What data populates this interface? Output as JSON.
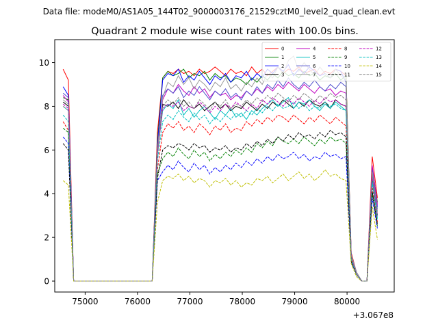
{
  "figure": {
    "suptitle": "Data file: modeM0/AS1A05_144T02_9000003176_21529cztM0_level2_quad_clean.evt",
    "offset_label": "+3.067e8"
  },
  "chart_data": {
    "type": "line",
    "title": "Quadrant 2 module wise count rates with 100.0s bins.",
    "xlabel": "",
    "ylabel": "",
    "x_offset": 306700000,
    "xlim": [
      74420,
      80900
    ],
    "ylim": [
      -0.5,
      11.05
    ],
    "xticks": [
      75000,
      76000,
      77000,
      78000,
      79000,
      80000
    ],
    "yticks": [
      0,
      2,
      4,
      6,
      8,
      10
    ],
    "x": [
      74580,
      74680,
      74780,
      74880,
      74980,
      75080,
      75180,
      75280,
      75380,
      75480,
      75580,
      75680,
      75780,
      75880,
      75980,
      76080,
      76180,
      76280,
      76380,
      76480,
      76580,
      76680,
      76780,
      76880,
      76980,
      77080,
      77180,
      77280,
      77380,
      77480,
      77580,
      77680,
      77780,
      77880,
      77980,
      78080,
      78180,
      78280,
      78380,
      78480,
      78580,
      78680,
      78780,
      78880,
      78980,
      79080,
      79180,
      79280,
      79380,
      79480,
      79580,
      79680,
      79780,
      79880,
      79980,
      80080,
      80180,
      80280,
      80380,
      80480,
      80580
    ],
    "legend": {
      "location": "upper right",
      "ncol": 4
    },
    "grid": false,
    "series": [
      {
        "name": "0",
        "color": "#ff0000",
        "style": "solid",
        "values": [
          9.7,
          9.2,
          0,
          0,
          0,
          0,
          0,
          0,
          0,
          0,
          0,
          0,
          0,
          0,
          0,
          0,
          0,
          0,
          6.8,
          9.3,
          9.6,
          9.5,
          9.7,
          9.5,
          9.6,
          9.4,
          9.7,
          9.5,
          9.6,
          9.8,
          9.6,
          9.4,
          9.7,
          9.5,
          9.6,
          9.4,
          9.8,
          9.5,
          9.7,
          9.4,
          9.6,
          9.8,
          9.5,
          9.7,
          9.6,
          9.8,
          9.5,
          9.6,
          9.7,
          9.4,
          9.6,
          9.5,
          9.7,
          9.6,
          9.4,
          1.3,
          0.4,
          0,
          0,
          5.7,
          3.8
        ]
      },
      {
        "name": "1",
        "color": "#008000",
        "style": "solid",
        "values": [
          8.4,
          8.3,
          0,
          0,
          0,
          0,
          0,
          0,
          0,
          0,
          0,
          0,
          0,
          0,
          0,
          0,
          0,
          0,
          6.4,
          9.3,
          9.6,
          9.4,
          9.5,
          9.7,
          9.3,
          9.5,
          9.4,
          9.6,
          9.2,
          9.5,
          9.3,
          9.4,
          9.1,
          9.3,
          9.2,
          9.0,
          9.3,
          9.1,
          9.4,
          9.2,
          9.5,
          9.3,
          9.6,
          9.4,
          9.5,
          9.3,
          9.6,
          9.4,
          9.5,
          9.2,
          9.4,
          9.3,
          9.5,
          9.2,
          9.4,
          1.2,
          0.4,
          0,
          0,
          5.2,
          3.6
        ]
      },
      {
        "name": "2",
        "color": "#0000ff",
        "style": "solid",
        "values": [
          8.9,
          8.5,
          0,
          0,
          0,
          0,
          0,
          0,
          0,
          0,
          0,
          0,
          0,
          0,
          0,
          0,
          0,
          0,
          6.2,
          9.2,
          9.5,
          9.4,
          9.7,
          9.1,
          9.4,
          9.2,
          9.6,
          9.3,
          9.0,
          9.4,
          9.2,
          9.5,
          9.1,
          9.4,
          9.3,
          9.6,
          9.2,
          9.5,
          9.3,
          9.7,
          9.5,
          9.8,
          9.6,
          9.9,
          9.4,
          9.7,
          9.5,
          9.8,
          9.6,
          9.4,
          9.5,
          9.3,
          9.7,
          9.6,
          9.1,
          1.2,
          0.4,
          0,
          0,
          5.0,
          3.4
        ]
      },
      {
        "name": "3",
        "color": "#000000",
        "style": "solid",
        "values": [
          8.2,
          8.0,
          0,
          0,
          0,
          0,
          0,
          0,
          0,
          0,
          0,
          0,
          0,
          0,
          0,
          0,
          0,
          0,
          5.9,
          8.1,
          8.0,
          8.2,
          7.9,
          8.3,
          8.0,
          7.9,
          8.1,
          7.8,
          8.0,
          8.2,
          7.9,
          8.1,
          7.8,
          8.0,
          7.9,
          8.2,
          8.0,
          7.8,
          8.1,
          7.9,
          8.2,
          8.0,
          8.3,
          8.1,
          7.9,
          8.2,
          8.0,
          8.3,
          8.1,
          8.0,
          8.2,
          7.9,
          8.3,
          8.1,
          8.0,
          1.1,
          0.3,
          0,
          0,
          4.7,
          3.0
        ]
      },
      {
        "name": "4",
        "color": "#bf00bf",
        "style": "solid",
        "values": [
          8.5,
          8.2,
          0,
          0,
          0,
          0,
          0,
          0,
          0,
          0,
          0,
          0,
          0,
          0,
          0,
          0,
          0,
          0,
          6.0,
          8.3,
          8.8,
          8.6,
          9.0,
          8.7,
          8.5,
          8.9,
          8.6,
          8.8,
          8.4,
          8.7,
          8.5,
          8.6,
          8.3,
          8.5,
          8.4,
          8.7,
          8.5,
          8.8,
          8.6,
          8.9,
          8.7,
          9.0,
          8.8,
          9.1,
          8.9,
          8.7,
          9.0,
          8.8,
          8.6,
          8.9,
          8.7,
          8.8,
          8.5,
          8.7,
          8.6,
          1.2,
          0.4,
          0,
          0,
          5.3,
          3.5
        ]
      },
      {
        "name": "5",
        "color": "#00bfbf",
        "style": "solid",
        "values": [
          8.0,
          7.8,
          0,
          0,
          0,
          0,
          0,
          0,
          0,
          0,
          0,
          0,
          0,
          0,
          0,
          0,
          0,
          0,
          5.9,
          7.8,
          8.1,
          7.9,
          8.3,
          7.6,
          7.9,
          7.5,
          7.8,
          8.0,
          7.7,
          7.4,
          7.8,
          7.6,
          7.9,
          7.5,
          7.7,
          7.4,
          7.8,
          7.6,
          7.9,
          8.1,
          8.3,
          8.0,
          8.2,
          8.4,
          7.9,
          8.2,
          8.1,
          8.3,
          8.0,
          7.8,
          8.1,
          7.9,
          8.2,
          8.0,
          7.8,
          1.1,
          0.3,
          0,
          0,
          4.6,
          2.9
        ]
      },
      {
        "name": "6",
        "color": "#4d4dcc",
        "style": "solid",
        "values": [
          8.6,
          8.4,
          0,
          0,
          0,
          0,
          0,
          0,
          0,
          0,
          0,
          0,
          0,
          0,
          0,
          0,
          0,
          0,
          6.1,
          8.5,
          8.8,
          8.6,
          8.9,
          8.4,
          8.7,
          8.5,
          8.9,
          8.6,
          8.3,
          8.7,
          8.5,
          8.8,
          8.4,
          8.6,
          8.3,
          8.7,
          8.5,
          8.9,
          8.6,
          9.0,
          8.8,
          9.2,
          8.9,
          9.3,
          9.0,
          8.8,
          9.1,
          8.9,
          9.2,
          8.9,
          8.7,
          9.0,
          8.8,
          9.1,
          8.9,
          1.2,
          0.4,
          0,
          0,
          5.1,
          3.3
        ]
      },
      {
        "name": "7",
        "color": "#999999",
        "style": "solid",
        "values": [
          8.3,
          8.1,
          0,
          0,
          0,
          0,
          0,
          0,
          0,
          0,
          0,
          0,
          0,
          0,
          0,
          0,
          0,
          0,
          6.0,
          8.4,
          9.1,
          8.9,
          9.4,
          9.0,
          9.3,
          8.8,
          9.2,
          9.0,
          8.7,
          9.1,
          8.9,
          9.3,
          8.8,
          9.0,
          8.7,
          9.1,
          8.9,
          9.3,
          9.0,
          9.5,
          9.3,
          9.8,
          9.5,
          10.1,
          10.3,
          9.6,
          10.0,
          9.7,
          9.4,
          9.8,
          9.5,
          9.3,
          9.7,
          9.4,
          9.2,
          1.2,
          0.4,
          0,
          0,
          5.0,
          3.2
        ]
      },
      {
        "name": "8",
        "color": "#ff0000",
        "style": "dashed",
        "values": [
          7.3,
          6.9,
          0,
          0,
          0,
          0,
          0,
          0,
          0,
          0,
          0,
          0,
          0,
          0,
          0,
          0,
          0,
          0,
          5.1,
          6.8,
          7.2,
          7.0,
          7.3,
          6.9,
          7.1,
          6.8,
          7.2,
          7.0,
          6.7,
          7.1,
          6.9,
          7.2,
          6.8,
          7.0,
          6.9,
          7.3,
          7.1,
          7.4,
          7.2,
          7.5,
          7.3,
          7.6,
          7.5,
          7.3,
          7.6,
          7.4,
          7.2,
          7.5,
          7.3,
          7.6,
          7.4,
          7.2,
          7.5,
          7.3,
          7.1,
          1.0,
          0.3,
          0,
          0,
          4.3,
          2.7
        ]
      },
      {
        "name": "9",
        "color": "#008000",
        "style": "dashed",
        "values": [
          7.0,
          6.8,
          0,
          0,
          0,
          0,
          0,
          0,
          0,
          0,
          0,
          0,
          0,
          0,
          0,
          0,
          0,
          0,
          4.9,
          5.6,
          5.9,
          5.7,
          6.1,
          5.8,
          5.6,
          6.0,
          5.7,
          5.9,
          5.5,
          5.8,
          5.6,
          5.9,
          5.7,
          6.0,
          5.8,
          6.1,
          5.9,
          6.3,
          6.1,
          6.4,
          6.2,
          6.6,
          6.4,
          6.3,
          6.5,
          6.3,
          6.6,
          6.4,
          6.2,
          6.5,
          6.3,
          6.6,
          6.4,
          6.5,
          6.3,
          0.9,
          0.3,
          0,
          0,
          4.0,
          2.5
        ]
      },
      {
        "name": "10",
        "color": "#0000ff",
        "style": "dashed",
        "values": [
          6.6,
          6.3,
          0,
          0,
          0,
          0,
          0,
          0,
          0,
          0,
          0,
          0,
          0,
          0,
          0,
          0,
          0,
          0,
          4.6,
          5.0,
          5.3,
          5.1,
          5.5,
          5.2,
          5.0,
          5.4,
          5.1,
          5.3,
          4.9,
          5.2,
          5.0,
          5.3,
          5.1,
          5.4,
          5.2,
          5.5,
          5.3,
          5.6,
          5.4,
          5.7,
          5.5,
          5.8,
          5.6,
          5.7,
          5.9,
          5.6,
          5.8,
          5.5,
          5.7,
          5.6,
          5.9,
          5.7,
          5.8,
          5.6,
          5.7,
          0.9,
          0.3,
          0,
          0,
          3.8,
          2.4
        ]
      },
      {
        "name": "11",
        "color": "#000000",
        "style": "dashed",
        "values": [
          6.3,
          6.0,
          0,
          0,
          0,
          0,
          0,
          0,
          0,
          0,
          0,
          0,
          0,
          0,
          0,
          0,
          0,
          0,
          4.7,
          6.0,
          6.2,
          6.1,
          6.3,
          6.2,
          6.0,
          6.3,
          6.1,
          6.2,
          5.9,
          6.1,
          6.0,
          6.2,
          5.9,
          6.1,
          6.0,
          6.3,
          6.1,
          6.4,
          6.2,
          6.5,
          6.3,
          6.6,
          6.4,
          6.7,
          6.5,
          6.8,
          6.6,
          6.7,
          6.5,
          6.8,
          6.6,
          6.9,
          6.7,
          6.8,
          6.6,
          0.9,
          0.3,
          0,
          0,
          4.1,
          2.6
        ]
      },
      {
        "name": "12",
        "color": "#bf00bf",
        "style": "dashed",
        "values": [
          8.1,
          7.9,
          0,
          0,
          0,
          0,
          0,
          0,
          0,
          0,
          0,
          0,
          0,
          0,
          0,
          0,
          0,
          0,
          5.8,
          7.9,
          8.1,
          8.0,
          8.2,
          7.8,
          8.0,
          7.9,
          8.2,
          8.0,
          7.7,
          8.0,
          7.8,
          8.1,
          7.9,
          8.2,
          8.0,
          7.8,
          8.1,
          7.9,
          8.3,
          8.1,
          8.4,
          8.2,
          8.0,
          8.3,
          8.1,
          8.4,
          8.2,
          8.0,
          8.3,
          8.1,
          8.4,
          8.2,
          8.3,
          8.1,
          8.0,
          1.1,
          0.3,
          0,
          0,
          4.8,
          3.0
        ]
      },
      {
        "name": "13",
        "color": "#00bfbf",
        "style": "dashed",
        "values": [
          7.6,
          7.3,
          0,
          0,
          0,
          0,
          0,
          0,
          0,
          0,
          0,
          0,
          0,
          0,
          0,
          0,
          0,
          0,
          5.5,
          7.3,
          7.6,
          7.4,
          7.8,
          7.5,
          7.3,
          7.7,
          7.4,
          7.6,
          7.2,
          7.5,
          7.3,
          7.6,
          7.4,
          7.7,
          7.5,
          7.8,
          7.6,
          7.9,
          7.7,
          8.0,
          7.8,
          8.1,
          7.9,
          8.0,
          8.2,
          7.9,
          8.1,
          7.8,
          8.0,
          7.9,
          8.2,
          8.0,
          8.1,
          7.9,
          7.8,
          1.0,
          0.3,
          0,
          0,
          4.5,
          2.8
        ]
      },
      {
        "name": "14",
        "color": "#bfbf00",
        "style": "dashed",
        "values": [
          4.6,
          4.4,
          0,
          0,
          0,
          0,
          0,
          0,
          0,
          0,
          0,
          0,
          0,
          0,
          0,
          0,
          0,
          0,
          3.6,
          4.6,
          4.8,
          4.7,
          4.9,
          4.6,
          4.8,
          4.5,
          4.7,
          4.6,
          4.3,
          4.6,
          4.5,
          4.7,
          4.4,
          4.6,
          4.3,
          4.5,
          4.4,
          4.7,
          4.6,
          4.8,
          4.5,
          4.7,
          4.9,
          4.6,
          4.8,
          5.0,
          4.7,
          4.9,
          4.6,
          4.8,
          5.1,
          4.8,
          4.9,
          4.7,
          4.6,
          0.8,
          0.2,
          0,
          0,
          3.4,
          1.9
        ]
      },
      {
        "name": "15",
        "color": "#808080",
        "style": "dashed",
        "values": [
          8.0,
          7.8,
          0,
          0,
          0,
          0,
          0,
          0,
          0,
          0,
          0,
          0,
          0,
          0,
          0,
          0,
          0,
          0,
          5.7,
          8.0,
          8.3,
          8.1,
          8.4,
          8.0,
          8.2,
          7.9,
          8.3,
          8.1,
          7.8,
          8.2,
          8.0,
          8.3,
          7.9,
          8.1,
          8.0,
          8.3,
          8.1,
          8.4,
          8.2,
          8.5,
          8.3,
          8.6,
          8.4,
          8.2,
          8.5,
          8.3,
          8.6,
          8.4,
          8.2,
          8.5,
          8.3,
          8.6,
          8.4,
          8.5,
          8.3,
          1.1,
          0.3,
          0,
          0,
          4.9,
          3.1
        ]
      }
    ]
  }
}
